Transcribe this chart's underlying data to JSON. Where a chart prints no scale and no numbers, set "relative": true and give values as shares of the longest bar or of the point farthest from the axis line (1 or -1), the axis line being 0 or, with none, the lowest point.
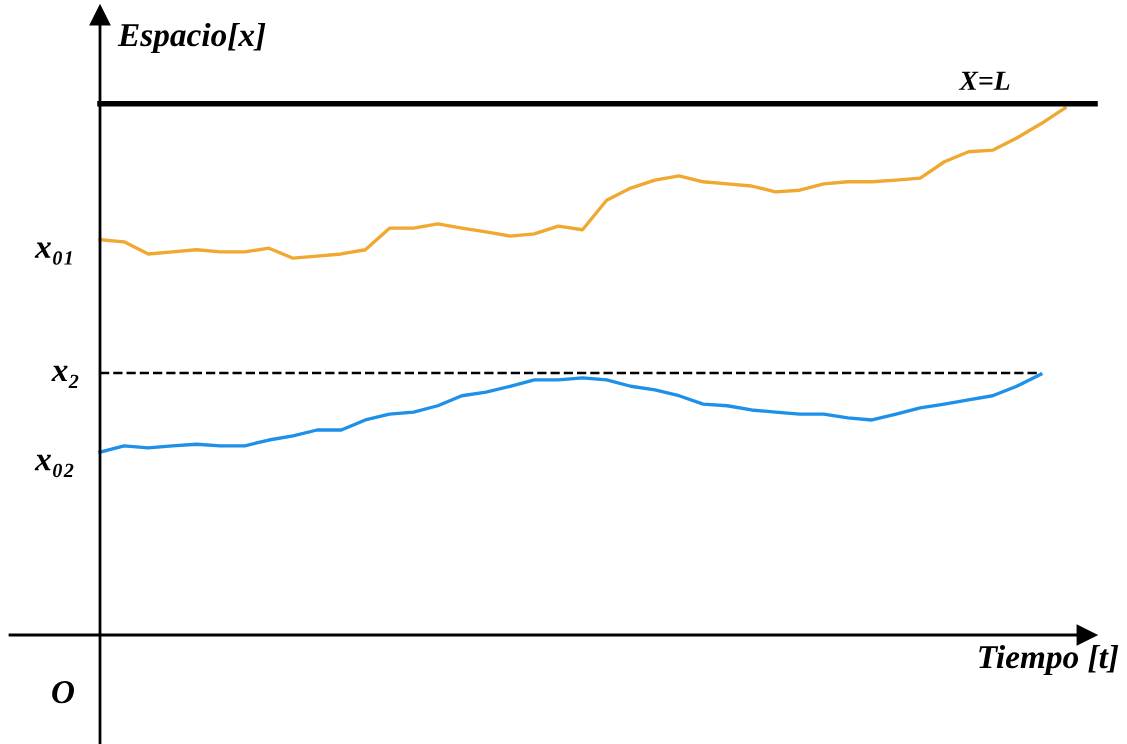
{
  "chart_data": {
    "type": "line",
    "relative": true,
    "xlabel": "Tiempo [t]",
    "ylabel": "Espacio[x]",
    "categories": [
      null,
      null,
      null,
      null,
      null,
      null,
      null,
      null,
      null,
      null,
      null,
      null,
      null,
      null,
      null,
      null,
      null,
      null,
      null,
      null,
      null,
      null,
      null,
      null,
      null,
      null,
      null,
      null,
      null,
      null,
      null,
      null,
      null,
      null,
      null,
      null,
      null,
      null,
      null,
      null,
      null
    ],
    "series": [
      {
        "color": "#f0a830",
        "values": [
          0.75,
          0.746,
          0.723,
          0.727,
          0.731,
          0.727,
          0.727,
          0.734,
          0.715,
          0.719,
          0.723,
          0.731,
          0.772,
          0.772,
          0.78,
          0.772,
          0.765,
          0.757,
          0.761,
          0.776,
          0.769,
          0.825,
          0.848,
          0.863,
          0.871,
          0.86,
          0.856,
          0.852,
          0.841,
          0.844,
          0.856,
          0.86,
          0.86,
          0.863,
          0.867,
          0.898,
          0.917,
          0.92,
          0.943,
          0.97,
          1.0
        ]
      },
      {
        "color": "#1e90e8",
        "values": [
          0.347,
          0.359,
          0.355,
          0.359,
          0.362,
          0.359,
          0.359,
          0.37,
          0.378,
          0.389,
          0.389,
          0.408,
          0.419,
          0.423,
          0.435,
          0.454,
          0.461,
          0.472,
          0.484,
          0.484,
          0.488,
          0.484,
          0.472,
          0.465,
          0.454,
          0.438,
          0.435,
          0.427,
          0.423,
          0.419,
          0.419,
          0.412,
          0.408,
          0.419,
          0.431,
          0.438,
          0.446,
          0.454,
          0.472,
          0.495,
          null
        ]
      }
    ],
    "ref_lines": [
      {
        "axis": "y",
        "value": 1.008,
        "label": "X=L",
        "color": "#000000",
        "line_style": "solid"
      },
      {
        "axis": "y",
        "value": 0.497,
        "label": "x₂",
        "color": "#000000",
        "line_style": "dashed"
      }
    ],
    "annotations": [
      "x₀₁",
      "x₀₂",
      "O"
    ],
    "line_style": "solid"
  }
}
